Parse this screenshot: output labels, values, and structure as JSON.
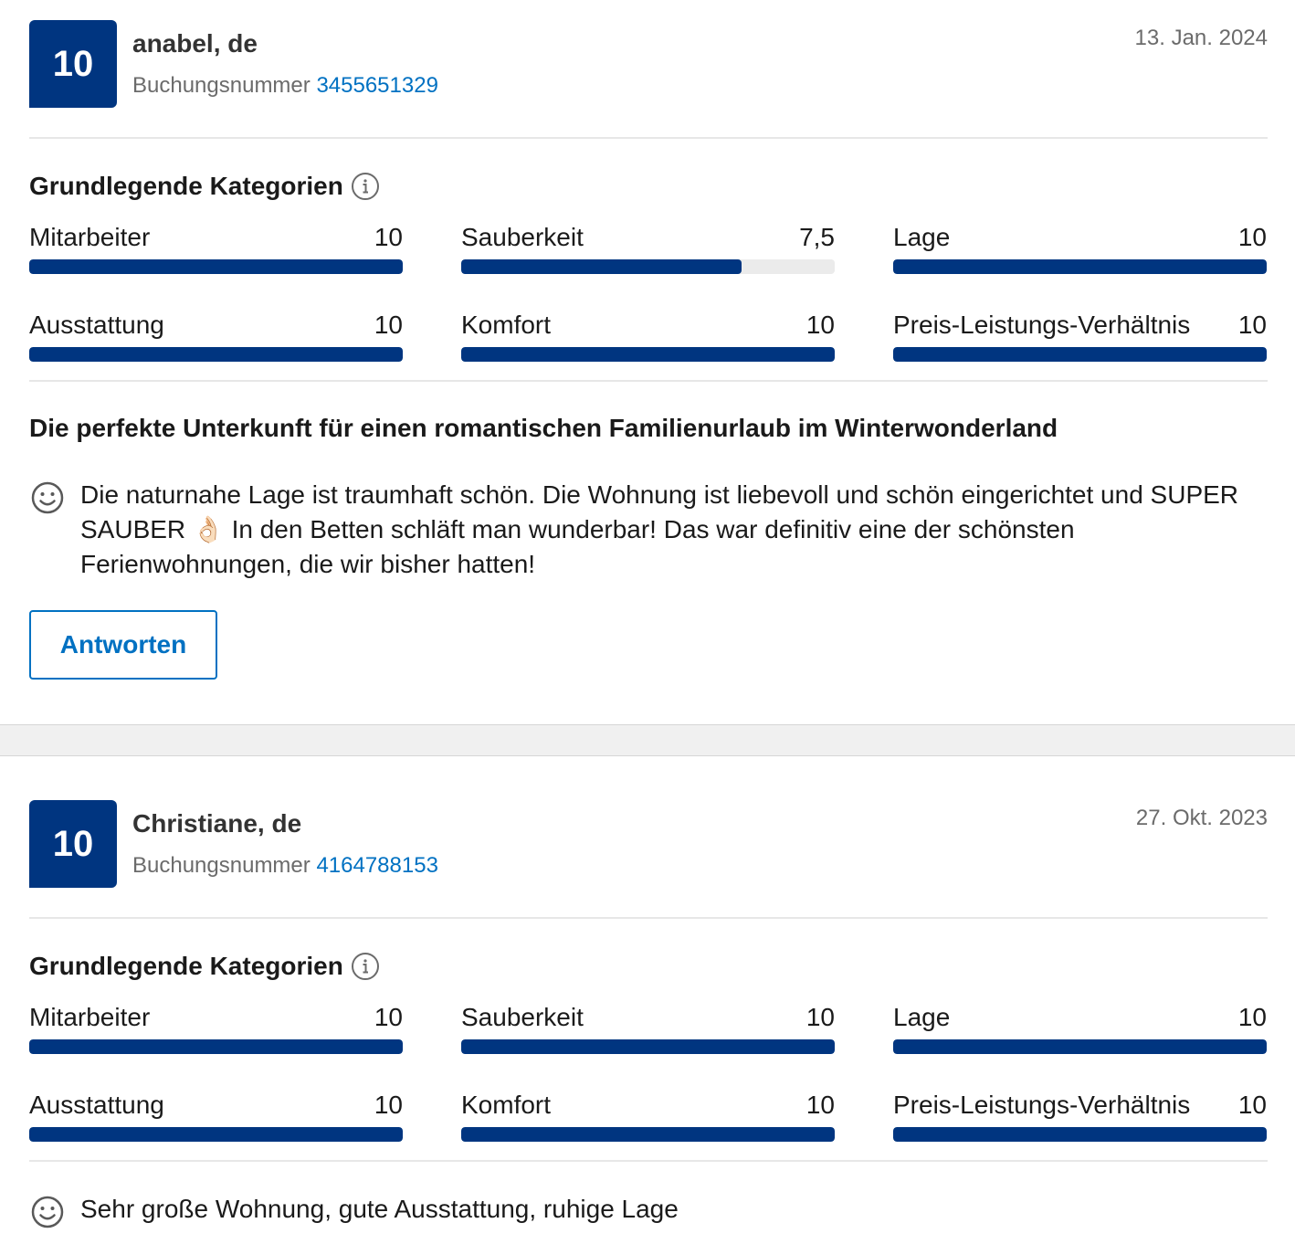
{
  "colors": {
    "brand": "#003580",
    "link": "#0071c2"
  },
  "reviews": [
    {
      "score": "10",
      "reviewer": "anabel, de",
      "booking_label": "Buchungsnummer",
      "booking_number": "3455651329",
      "date": "13. Jan. 2024",
      "categories_heading": "Grundlegende Kategorien",
      "categories": [
        {
          "label": "Mitarbeiter",
          "value": "10",
          "fraction": 1.0
        },
        {
          "label": "Sauberkeit",
          "value": "7,5",
          "fraction": 0.75
        },
        {
          "label": "Lage",
          "value": "10",
          "fraction": 1.0
        },
        {
          "label": "Ausstattung",
          "value": "10",
          "fraction": 1.0
        },
        {
          "label": "Komfort",
          "value": "10",
          "fraction": 1.0
        },
        {
          "label": "Preis-Leistungs-Verhältnis",
          "value": "10",
          "fraction": 1.0
        }
      ],
      "title": "Die perfekte Unterkunft für einen romantischen Familienurlaub im Winterwonderland",
      "positive_text": "Die naturnahe Lage ist traumhaft schön. Die Wohnung ist liebevoll und schön eingerichtet und SUPER SAUBER 👌🏻 In den Betten schläft man wunderbar! Das war definitiv eine der schönsten Ferienwohnungen, die wir bisher hatten!",
      "reply_label": "Antworten"
    },
    {
      "score": "10",
      "reviewer": "Christiane, de",
      "booking_label": "Buchungsnummer",
      "booking_number": "4164788153",
      "date": "27. Okt. 2023",
      "categories_heading": "Grundlegende Kategorien",
      "categories": [
        {
          "label": "Mitarbeiter",
          "value": "10",
          "fraction": 1.0
        },
        {
          "label": "Sauberkeit",
          "value": "10",
          "fraction": 1.0
        },
        {
          "label": "Lage",
          "value": "10",
          "fraction": 1.0
        },
        {
          "label": "Ausstattung",
          "value": "10",
          "fraction": 1.0
        },
        {
          "label": "Komfort",
          "value": "10",
          "fraction": 1.0
        },
        {
          "label": "Preis-Leistungs-Verhältnis",
          "value": "10",
          "fraction": 1.0
        }
      ],
      "positive_text": "Sehr große Wohnung, gute Ausstattung, ruhige Lage"
    }
  ]
}
